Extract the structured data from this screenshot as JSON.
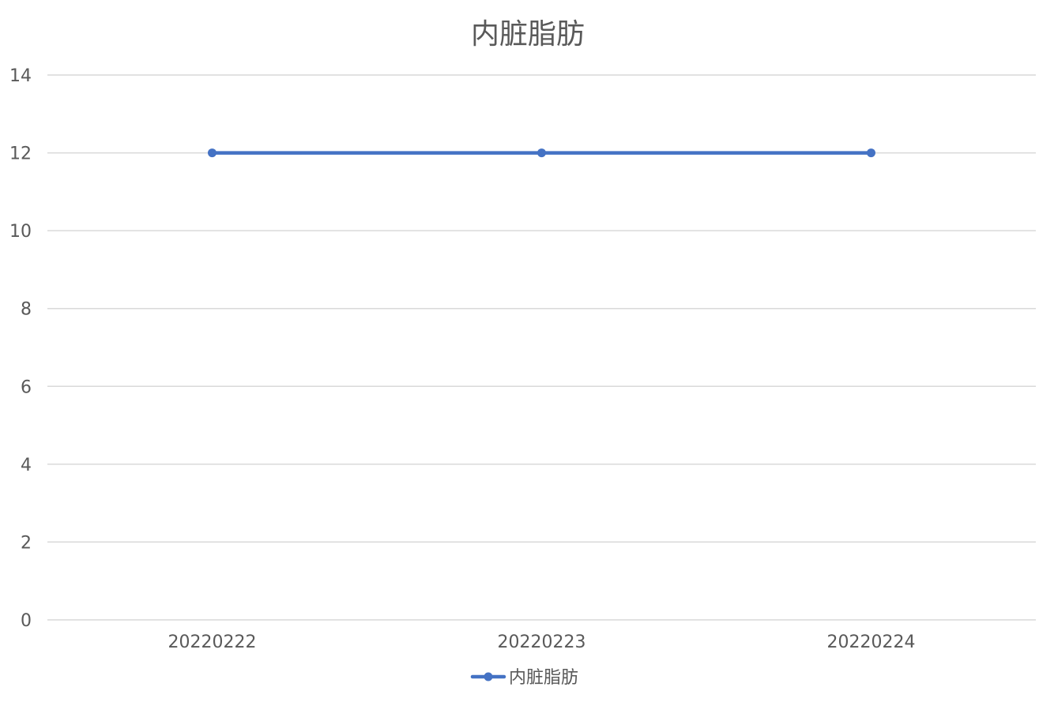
{
  "chart_data": {
    "type": "line",
    "title": "内脏脂肪",
    "xlabel": "",
    "ylabel": "",
    "categories": [
      "20220222",
      "20220223",
      "20220224"
    ],
    "series": [
      {
        "name": "内脏脂肪",
        "values": [
          12,
          12,
          12
        ],
        "color": "#4472C4"
      }
    ],
    "ylim": [
      0,
      14
    ],
    "yticks": [
      0,
      2,
      4,
      6,
      8,
      10,
      12,
      14
    ],
    "grid": true,
    "grid_color": "#D9D9D9",
    "legend_position": "bottom",
    "markers": true
  }
}
